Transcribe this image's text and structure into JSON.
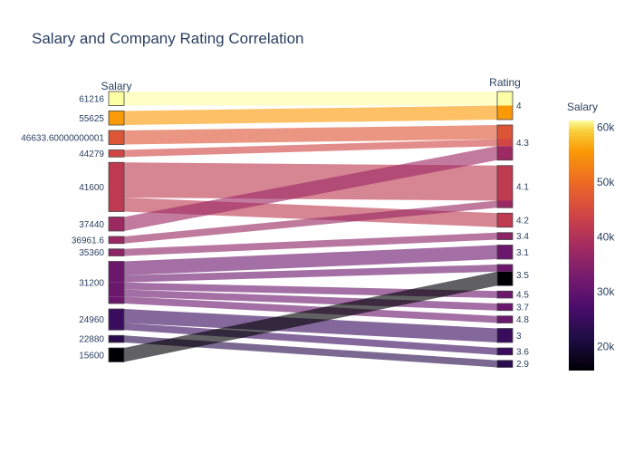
{
  "chart_data": {
    "type": "parallel_categories",
    "title": "Salary and Company Rating Correlation",
    "dimensions": [
      {
        "label": "Salary",
        "categories": [
          "61216",
          "55625",
          "46633.60000000001",
          "44279",
          "41600",
          "37440",
          "36961.6",
          "35360",
          "31200",
          "24960",
          "22880",
          "15600"
        ]
      },
      {
        "label": "Rating",
        "categories": [
          "4",
          "4.3",
          "4.1",
          "4.2",
          "3.4",
          "3.1",
          "3.5",
          "4.5",
          "3.7",
          "4.8",
          "3",
          "3.6",
          "2.9"
        ]
      }
    ],
    "links": [
      {
        "salary": "61216",
        "rating": "4",
        "count": 1
      },
      {
        "salary": "55625",
        "rating": "4",
        "count": 1
      },
      {
        "salary": "46633.60000000001",
        "rating": "4.3",
        "count": 1
      },
      {
        "salary": "44279",
        "rating": "4.3",
        "count": 0.5
      },
      {
        "salary": "41600",
        "rating": "4.1",
        "count": 2.5
      },
      {
        "salary": "41600",
        "rating": "4.2",
        "count": 1
      },
      {
        "salary": "37440",
        "rating": "4.3",
        "count": 1
      },
      {
        "salary": "36961.6",
        "rating": "4.1",
        "count": 0.5
      },
      {
        "salary": "35360",
        "rating": "3.4",
        "count": 0.5
      },
      {
        "salary": "31200",
        "rating": "3.1",
        "count": 1
      },
      {
        "salary": "31200",
        "rating": "3.5",
        "count": 0.5
      },
      {
        "salary": "31200",
        "rating": "4.5",
        "count": 0.5
      },
      {
        "salary": "31200",
        "rating": "3.7",
        "count": 0.5
      },
      {
        "salary": "31200",
        "rating": "4.8",
        "count": 0.5
      },
      {
        "salary": "24960",
        "rating": "3",
        "count": 1
      },
      {
        "salary": "24960",
        "rating": "3.6",
        "count": 0.5
      },
      {
        "salary": "22880",
        "rating": "2.9",
        "count": 0.5
      },
      {
        "salary": "15600",
        "rating": "3.5",
        "count": 1
      }
    ],
    "colorbar": {
      "title": "Salary",
      "ticks": [
        "60k",
        "50k",
        "40k",
        "30k",
        "20k"
      ],
      "tick_values": [
        60000,
        50000,
        40000,
        30000,
        20000
      ],
      "range": [
        15600,
        61216
      ],
      "colorscale": "inferno"
    }
  }
}
